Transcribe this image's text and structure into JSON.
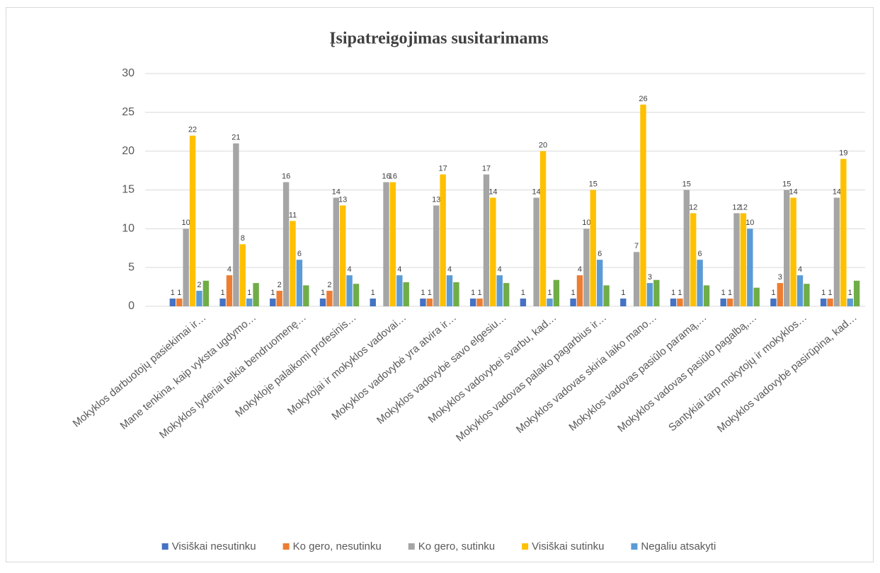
{
  "chart_data": {
    "type": "bar",
    "title": "Įsipatreigojimas susitarimams",
    "categories": [
      "Mokyklos darbuotojų pasiekimai ir…",
      "Mane tenkina, kaip vyksta ugdymo…",
      "Mokyklos lyderiai telkia bendruomenę…",
      "Mokykloje palaikomi profesinis…",
      "Mokytojai ir mokyklos vadovai…",
      "Mokyklos vadovybė yra atvira ir…",
      "Mokyklos vadovybė savo elgesiu…",
      "Mokyklos vadovybei svarbu, kad…",
      "Mokyklos vadovas palaiko pagarbius ir…",
      "Mokyklos vadovas skiria laiko mano…",
      "Mokyklos vadovas pasiūlo paramą,…",
      "Mokyklos vadovas pasiūlo pagalbą,…",
      "Santykiai tarp mokytojų ir mokyklos…",
      "Mokyklos vadovybė pasirūpina, kad…"
    ],
    "series": [
      {
        "name": "Visiškai nesutinku",
        "color": "#4472c4",
        "labels": true,
        "values": [
          1,
          1,
          1,
          1,
          1,
          1,
          1,
          1,
          1,
          1,
          1,
          1,
          1,
          1
        ]
      },
      {
        "name": "Ko gero, nesutinku",
        "color": "#ed7d31",
        "labels": true,
        "values": [
          1,
          4,
          2,
          2,
          null,
          1,
          1,
          null,
          4,
          null,
          1,
          1,
          3,
          1
        ]
      },
      {
        "name": "Ko gero, sutinku",
        "color": "#a5a5a5",
        "labels": true,
        "values": [
          10,
          21,
          16,
          14,
          16,
          13,
          17,
          14,
          10,
          7,
          15,
          12,
          15,
          14
        ]
      },
      {
        "name": "Visiškai sutinku",
        "color": "#ffc000",
        "labels": true,
        "values": [
          22,
          8,
          11,
          13,
          16,
          17,
          14,
          20,
          15,
          26,
          12,
          12,
          14,
          19
        ]
      },
      {
        "name": "Negaliu atsakyti",
        "color": "#5b9bd5",
        "labels": true,
        "values": [
          2,
          1,
          6,
          4,
          4,
          4,
          4,
          1,
          6,
          3,
          6,
          10,
          4,
          1
        ]
      },
      {
        "color": "#70ad47",
        "labels": false,
        "values": [
          3.3,
          3,
          2.7,
          2.9,
          3.1,
          3.1,
          3,
          3.4,
          2.7,
          3.4,
          2.7,
          2.4,
          2.9,
          3.3
        ]
      }
    ],
    "ylim": [
      0,
      30
    ],
    "yticks": [
      0,
      5,
      10,
      15,
      20,
      25,
      30
    ],
    "grid": true,
    "legend": "bottom"
  }
}
